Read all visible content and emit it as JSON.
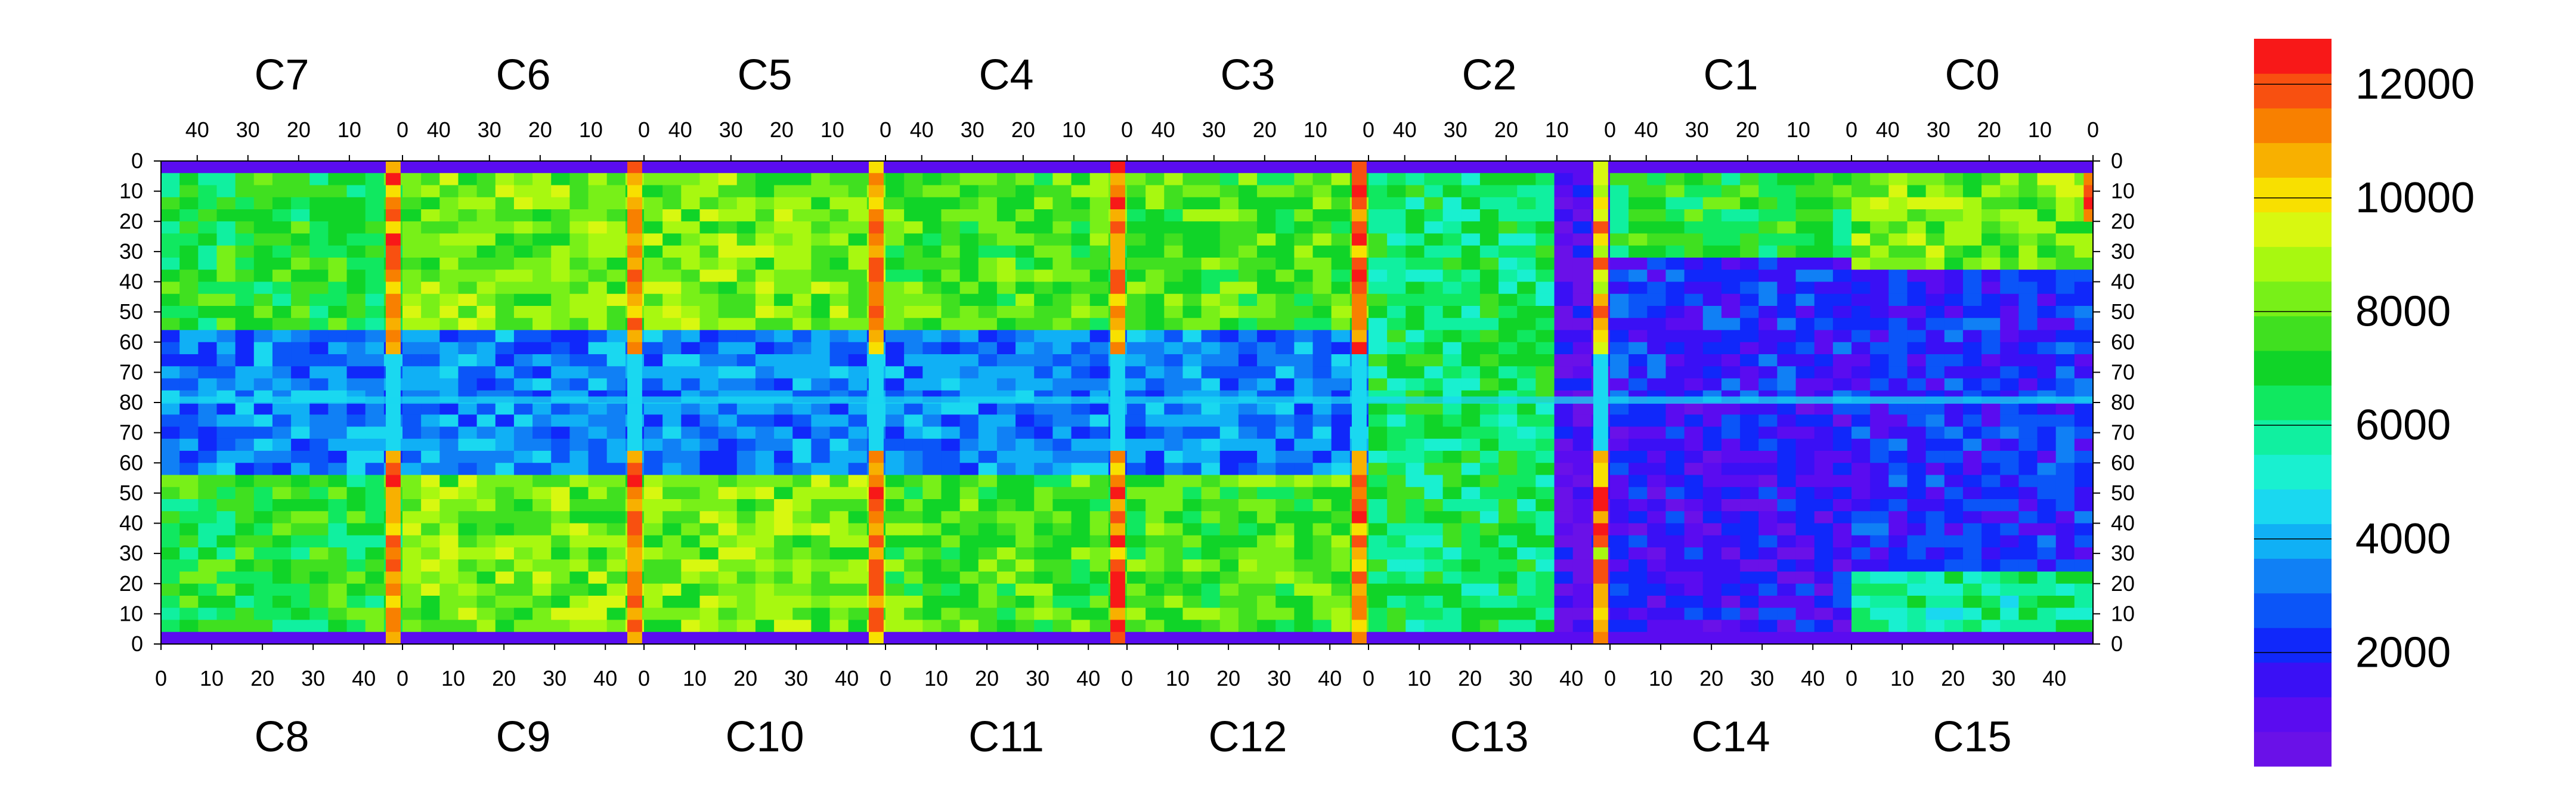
{
  "chart_data": {
    "type": "heatmap",
    "title": "",
    "xlabel": "",
    "ylabel": "",
    "top_chip_labels": [
      "C7",
      "C6",
      "C5",
      "C4",
      "C3",
      "C2",
      "C1",
      "C0"
    ],
    "bottom_chip_labels": [
      "C8",
      "C9",
      "C10",
      "C11",
      "C12",
      "C13",
      "C14",
      "C15"
    ],
    "top_x_tick_labels": [
      "40",
      "30",
      "20",
      "10",
      "0"
    ],
    "bottom_x_tick_labels": [
      "0",
      "10",
      "20",
      "30",
      "40"
    ],
    "y_tick_labels_top_half": [
      "0",
      "10",
      "20",
      "30",
      "40",
      "50",
      "60",
      "70",
      "80"
    ],
    "y_tick_labels_bottom_half": [
      "70",
      "60",
      "50",
      "40",
      "30",
      "20",
      "10",
      "0"
    ],
    "columns_per_chip": 52,
    "rows_per_half": 80,
    "z_range": [
      0,
      12800
    ],
    "colorbar_labels": [
      "12000",
      "10000",
      "8000",
      "6000",
      "4000",
      "2000"
    ],
    "colorbar_values": [
      12000,
      10000,
      8000,
      6000,
      4000,
      2000
    ],
    "grid": false,
    "palette": [
      "#6a11e8",
      "#5a0cf0",
      "#3a10f5",
      "#1028fa",
      "#0b55f8",
      "#1080f5",
      "#10b0f5",
      "#1ad8f0",
      "#19f0d0",
      "#10f0a0",
      "#10e860",
      "#10d428",
      "#40e020",
      "#78f018",
      "#a8f810",
      "#d8f810",
      "#f8e000",
      "#f8b000",
      "#f88000",
      "#f85010",
      "#f81818"
    ],
    "dominant_levels": {
      "C0": "green-yellow, mostly 6000-9000",
      "C1": "green upper part, violet lower part",
      "C2": "green-cyan left, violet right",
      "C3": "green, 6000-9000",
      "C4": "green, 6000-9000",
      "C5": "green-yellow, 6000-9000",
      "C6": "green-yellow, 6000-9000",
      "C7": "green, 5000-8000",
      "C8": "green, 5000-8000",
      "C9": "green-yellow, 6000-9000",
      "C10": "green-yellow, 6000-9000",
      "C11": "green, 6000-9000",
      "C12": "green, 6000-9000",
      "C13": "green-cyan left, violet right",
      "C14": "violet, 0-2000",
      "C15": "violet/blue, 0-3000"
    },
    "edge_column_levels": "red/yellow, 9000-12000 along chip boundaries",
    "central_band_levels": "blue, 2000-5000 around row 80"
  }
}
